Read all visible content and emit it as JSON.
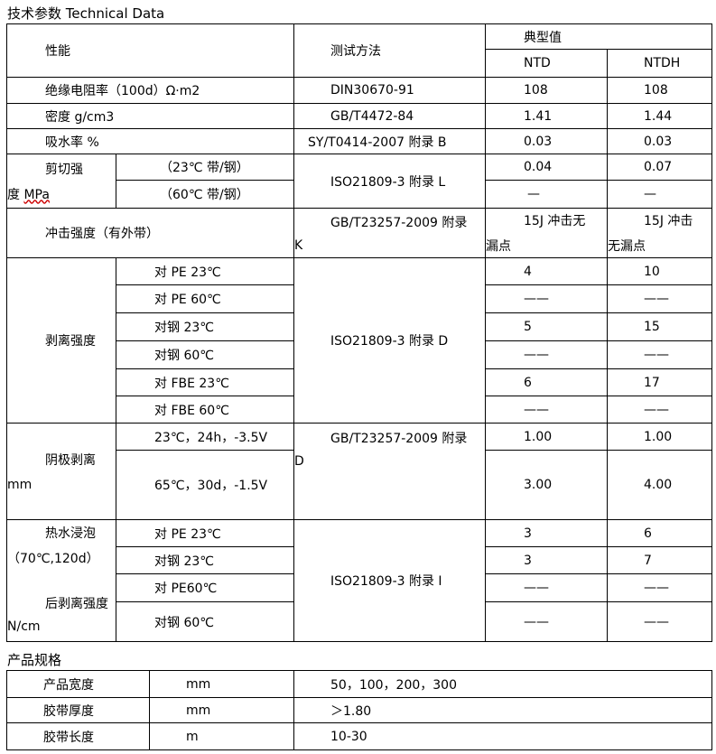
{
  "title": "技术参数 Technical Data",
  "header": {
    "property": "性能",
    "method": "测试方法",
    "typical": "典型值",
    "ntd": "NTD",
    "ntdh": "NTDH"
  },
  "simple_rows": [
    {
      "property": "绝缘电阻率（100d）Ω·m2",
      "method": "DIN30670-91",
      "ntd": "108",
      "ntdh": "108"
    },
    {
      "property": "密度  g/cm3",
      "method": "GB/T4472-84",
      "ntd": "1.41",
      "ntdh": "1.44"
    },
    {
      "property": "吸水率  %",
      "method": "SY/T0414-2007 附录 B",
      "ntd": "0.03",
      "ntdh": "0.03"
    }
  ],
  "shear": {
    "property_line1": "剪切强",
    "property_line2": "度 MPa",
    "method": "ISO21809-3 附录 L",
    "rows": [
      {
        "condition": "（23℃ 带/钢）",
        "ntd": "0.04",
        "ntdh": "0.07"
      },
      {
        "condition": "（60℃ 带/钢）",
        "ntd": "—",
        "ntdh": "—"
      }
    ]
  },
  "impact": {
    "property": "冲击强度（有外带）",
    "method_line1": "GB/T23257-2009 附录",
    "method_line2": "K",
    "ntd_line1": "15J 冲击无",
    "ntd_line2": "漏点",
    "ntdh_line1": "15J 冲击",
    "ntdh_line2": "无漏点"
  },
  "peel": {
    "property": "剥离强度",
    "method": "ISO21809-3 附录 D",
    "rows": [
      {
        "condition": "对 PE 23℃",
        "ntd": "4",
        "ntdh": "10"
      },
      {
        "condition": "对 PE 60℃",
        "ntd": "——",
        "ntdh": "——"
      },
      {
        "condition": "对钢 23℃",
        "ntd": "5",
        "ntdh": "15"
      },
      {
        "condition": "对钢 60℃",
        "ntd": "——",
        "ntdh": "——"
      },
      {
        "condition": "对 FBE 23℃",
        "ntd": "6",
        "ntdh": "17"
      },
      {
        "condition": "对 FBE 60℃",
        "ntd": "——",
        "ntdh": "——"
      }
    ]
  },
  "cathodic": {
    "property_line1": "阴极剥离",
    "property_line2": "mm",
    "method_line1": "GB/T23257-2009 附录",
    "method_line2": "D",
    "rows": [
      {
        "condition": "23℃，24h，-3.5V",
        "ntd": "1.00",
        "ntdh": "1.00"
      },
      {
        "condition": "65℃，30d，-1.5V",
        "ntd": "3.00",
        "ntdh": "4.00"
      }
    ]
  },
  "hotwater": {
    "property_line1": "热水浸泡",
    "property_line2": "（70℃,120d）",
    "property_line3": "后剥离强度",
    "property_line4": "N/cm",
    "method": "ISO21809-3 附录 I",
    "rows": [
      {
        "condition": "对 PE 23℃",
        "ntd": "3",
        "ntdh": "6"
      },
      {
        "condition": "对钢 23℃",
        "ntd": "3",
        "ntdh": "7"
      },
      {
        "condition": "对 PE60℃",
        "ntd": "——",
        "ntdh": "——"
      },
      {
        "condition": "对钢 60℃",
        "ntd": "——",
        "ntdh": "——"
      }
    ]
  },
  "spec_title": "产品规格",
  "spec_rows": [
    {
      "name": "产品宽度",
      "unit": "mm",
      "value": "50，100，200，300"
    },
    {
      "name": "胶带厚度",
      "unit": "mm",
      "value": "＞1.80"
    },
    {
      "name": "胶带长度",
      "unit": "m",
      "value": "10-30"
    }
  ]
}
